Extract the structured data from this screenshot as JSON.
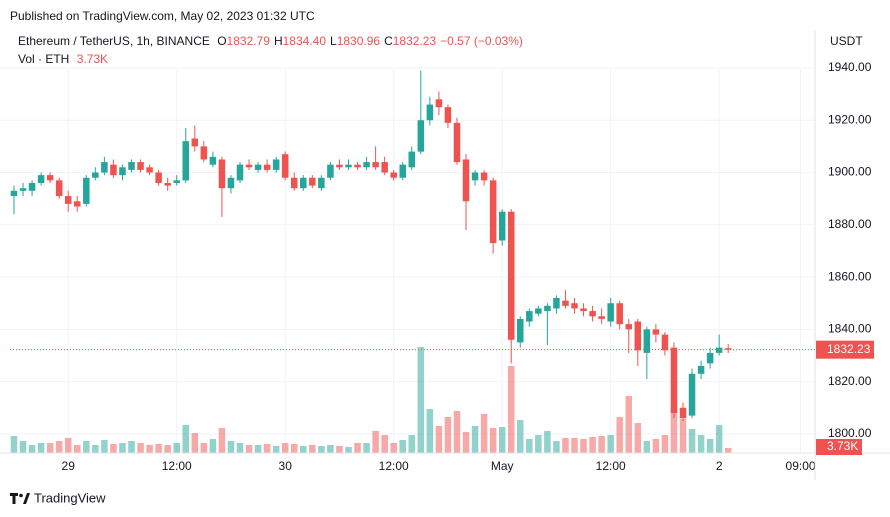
{
  "published": "Published on TradingView.com, May 02, 2023 01:32 UTC",
  "footer": "TradingView",
  "chart_data": {
    "type": "candlestick",
    "title": "Ethereum / TetherUS, 1h, BINANCE",
    "legend_letters": [
      "O",
      "H",
      "L",
      "C"
    ],
    "legend_values": [
      "1832.79",
      "1834.40",
      "1830.96",
      "1832.23"
    ],
    "legend_change": "−0.57 (−0.03%)",
    "volume_title": "Vol · ETH",
    "volume_last_label": "3.73K",
    "currency": "USDT",
    "up_color": "#26a69a",
    "down_color": "#ef5350",
    "open": [
      1891,
      1893,
      1893,
      1896,
      1899,
      1897,
      1891,
      1889,
      1888,
      1898,
      1900,
      1903,
      1899,
      1901,
      1904,
      1902,
      1900,
      1896,
      1896,
      1897,
      1913,
      1910,
      1903,
      1905,
      1894,
      1897,
      1903,
      1901,
      1903,
      1901,
      1907,
      1898,
      1894,
      1898,
      1894,
      1898,
      1903,
      1902,
      1903,
      1902,
      1904,
      1904,
      1900,
      1898,
      1902,
      1908,
      1920,
      1928,
      1925,
      1919,
      1905,
      1897,
      1900,
      1897,
      1874,
      1885,
      1835,
      1843,
      1846,
      1847,
      1848,
      1851,
      1850,
      1848,
      1847,
      1845,
      1843,
      1850,
      1842,
      1843,
      1831,
      1840,
      1838,
      1833,
      1810,
      1807,
      1823,
      1827,
      1831,
      1832.79
    ],
    "high": [
      1895,
      1896,
      1897,
      1900,
      1900,
      1898,
      1893,
      1891,
      1899,
      1902,
      1906,
      1905,
      1903,
      1905,
      1905,
      1903,
      1901,
      1898,
      1899,
      1917,
      1918,
      1912,
      1908,
      1906,
      1899,
      1904,
      1905,
      1904,
      1905,
      1906,
      1908,
      1900,
      1899,
      1899,
      1899,
      1904,
      1905,
      1905,
      1904,
      1906,
      1910,
      1906,
      1901,
      1904,
      1910,
      1939,
      1929,
      1931,
      1926,
      1921,
      1907,
      1901,
      1901,
      1898,
      1886,
      1886,
      1845,
      1848,
      1849,
      1850,
      1853,
      1855,
      1852,
      1850,
      1849,
      1848,
      1852,
      1851,
      1844,
      1844,
      1841,
      1842,
      1839,
      1835,
      1812,
      1825,
      1828,
      1833,
      1838,
      1834.4
    ],
    "low": [
      1884,
      1891,
      1891,
      1895,
      1896,
      1890,
      1885,
      1885,
      1887,
      1897,
      1899,
      1898,
      1897,
      1900,
      1900,
      1899,
      1895,
      1893,
      1895,
      1896,
      1908,
      1904,
      1902,
      1883,
      1892,
      1896,
      1901,
      1900,
      1900,
      1900,
      1897,
      1893,
      1893,
      1894,
      1893,
      1897,
      1901,
      1901,
      1901,
      1901,
      1901,
      1899,
      1897,
      1897,
      1901,
      1907,
      1918,
      1922,
      1917,
      1903,
      1878,
      1895,
      1895,
      1869,
      1872,
      1827,
      1833,
      1841,
      1845,
      1834,
      1846,
      1848,
      1846,
      1845,
      1843,
      1842,
      1841,
      1840,
      1831,
      1826,
      1821,
      1835,
      1830,
      1806,
      1805,
      1806,
      1821,
      1825,
      1830,
      1830.96
    ],
    "close": [
      1893,
      1894,
      1896,
      1899,
      1897,
      1891,
      1888,
      1887,
      1898,
      1900,
      1904,
      1899,
      1902,
      1904,
      1901,
      1900,
      1896,
      1895,
      1897,
      1912,
      1910,
      1905,
      1906,
      1894,
      1898,
      1903,
      1902,
      1903,
      1901,
      1905,
      1898,
      1894,
      1898,
      1895,
      1898,
      1903,
      1902,
      1903,
      1902,
      1904,
      1902,
      1900,
      1898,
      1903,
      1908,
      1920,
      1926,
      1925,
      1919,
      1904,
      1889,
      1900,
      1897,
      1873,
      1885,
      1836,
      1844,
      1847,
      1848,
      1849,
      1852,
      1849,
      1848,
      1847,
      1845,
      1844,
      1850,
      1842,
      1840,
      1832,
      1840,
      1838,
      1832,
      1808,
      1806,
      1823,
      1826,
      1831,
      1833,
      1832.23
    ],
    "volume": [
      12750,
      9000,
      6000,
      7500,
      7500,
      9000,
      11250,
      6000,
      9000,
      6000,
      9750,
      6750,
      7500,
      9000,
      7500,
      6000,
      6750,
      6000,
      7500,
      21000,
      15000,
      7500,
      10500,
      18750,
      9000,
      7500,
      6000,
      6000,
      6750,
      5250,
      7500,
      6750,
      5250,
      6000,
      5250,
      6000,
      5250,
      4500,
      7500,
      7500,
      16500,
      13500,
      7500,
      9750,
      13500,
      79500,
      33000,
      20250,
      27000,
      31500,
      15750,
      20250,
      29250,
      18750,
      19500,
      65250,
      24750,
      10500,
      13500,
      16500,
      9000,
      11250,
      11250,
      10500,
      12000,
      12750,
      13500,
      27000,
      42750,
      22500,
      9000,
      10500,
      13500,
      34500,
      25500,
      18000,
      13500,
      10500,
      21000,
      3730
    ],
    "ylim": [
      1792.7,
      1950.7
    ],
    "yticks": [
      {
        "value": 1800,
        "label": "1800.00"
      },
      {
        "value": 1820,
        "label": "1820.00"
      },
      {
        "value": 1840,
        "label": "1840.00"
      },
      {
        "value": 1860,
        "label": "1860.00"
      },
      {
        "value": 1880,
        "label": "1880.00"
      },
      {
        "value": 1900,
        "label": "1900.00"
      },
      {
        "value": 1920,
        "label": "1920.00"
      },
      {
        "value": 1940,
        "label": "1940.00"
      }
    ],
    "xlim": [
      -0.44,
      88.6
    ],
    "xticks": [
      {
        "value": 6,
        "label": "29"
      },
      {
        "value": 18,
        "label": "12:00"
      },
      {
        "value": 30,
        "label": "30"
      },
      {
        "value": 42,
        "label": "12:00"
      },
      {
        "value": 54,
        "label": "May"
      },
      {
        "value": 66,
        "label": "12:00"
      },
      {
        "value": 78,
        "label": "2"
      },
      {
        "value": 87,
        "label": "09:00"
      }
    ],
    "grid": true
  }
}
